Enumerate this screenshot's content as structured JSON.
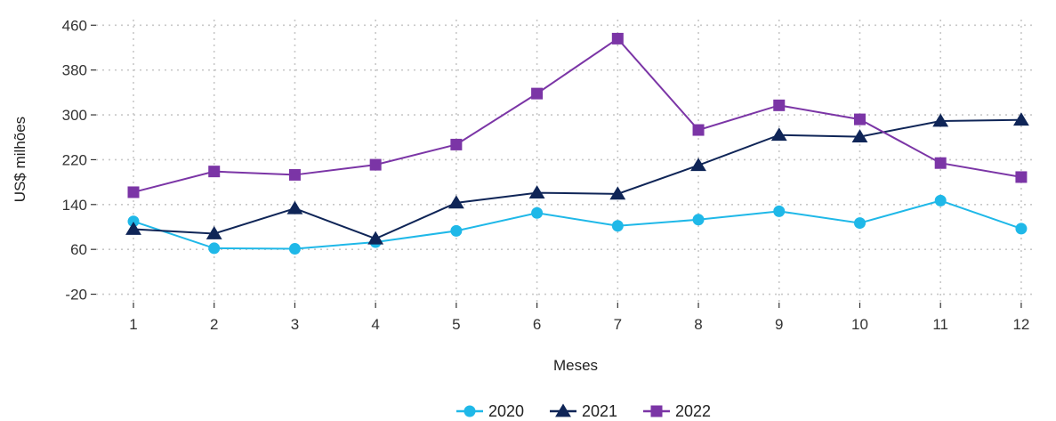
{
  "chart_data": {
    "type": "line",
    "title": "",
    "xlabel": "Meses",
    "ylabel": "US$ milhões",
    "categories": [
      "1",
      "2",
      "3",
      "4",
      "5",
      "6",
      "7",
      "8",
      "9",
      "10",
      "11",
      "12"
    ],
    "yticks": [
      "-20",
      "60",
      "140",
      "220",
      "300",
      "380",
      "460"
    ],
    "ylim": [
      -35,
      470
    ],
    "grid": true,
    "legend_position": "bottom",
    "series": [
      {
        "name": "2020",
        "color": "#1fb8e8",
        "marker": "circle",
        "values": [
          110,
          62,
          61,
          73,
          93,
          125,
          102,
          113,
          128,
          107,
          147,
          97
        ]
      },
      {
        "name": "2021",
        "color": "#0f2557",
        "marker": "triangle",
        "values": [
          96,
          88,
          133,
          79,
          143,
          161,
          159,
          210,
          264,
          261,
          289,
          291
        ]
      },
      {
        "name": "2022",
        "color": "#7b35a6",
        "marker": "square",
        "values": [
          162,
          199,
          193,
          211,
          247,
          338,
          436,
          273,
          317,
          292,
          214,
          189
        ]
      }
    ]
  }
}
